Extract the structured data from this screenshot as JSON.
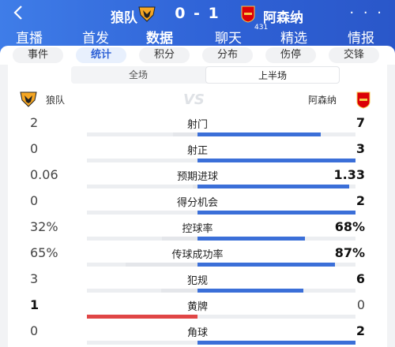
{
  "header": {
    "back_icon": "back-arrow-icon",
    "home_team": "狼队",
    "away_team": "阿森纳",
    "score": "0 - 1",
    "more": "· · ·"
  },
  "tabs": [
    {
      "label": "直播"
    },
    {
      "label": "首发"
    },
    {
      "label": "数据"
    },
    {
      "label": "聊天",
      "badge": "431"
    },
    {
      "label": "精选"
    },
    {
      "label": "情报"
    }
  ],
  "subtabs": [
    {
      "label": "事件"
    },
    {
      "label": "统计"
    },
    {
      "label": "积分"
    },
    {
      "label": "分布"
    },
    {
      "label": "伤停"
    },
    {
      "label": "交锋"
    }
  ],
  "segment": {
    "all": "全场",
    "first_half": "上半场"
  },
  "teams_row": {
    "home": "狼队",
    "vs": "VS",
    "away": "阿森纳"
  },
  "colors": {
    "header": "#2f62d6",
    "home_bar": "#e04646",
    "away_bar": "#3b6fd8"
  },
  "stats": [
    {
      "label": "射门",
      "home": "2",
      "away": "7",
      "home_share": 0.22,
      "away_share": 0.78
    },
    {
      "label": "射正",
      "home": "0",
      "away": "3",
      "home_share": 0.0,
      "away_share": 1.0
    },
    {
      "label": "预期进球",
      "home": "0.06",
      "away": "1.33",
      "home_share": 0.04,
      "away_share": 0.96
    },
    {
      "label": "得分机会",
      "home": "0",
      "away": "2",
      "home_share": 0.0,
      "away_share": 1.0
    },
    {
      "label": "控球率",
      "home": "32%",
      "away": "68%",
      "home_share": 0.32,
      "away_share": 0.68
    },
    {
      "label": "传球成功率",
      "home": "65%",
      "away": "87%",
      "home_share": 0.65,
      "away_share": 0.87
    },
    {
      "label": "犯规",
      "home": "3",
      "away": "6",
      "home_share": 0.33,
      "away_share": 0.67
    },
    {
      "label": "黄牌",
      "home": "1",
      "away": "0",
      "home_share": 1.0,
      "away_share": 0.0
    },
    {
      "label": "角球",
      "home": "0",
      "away": "2",
      "home_share": 0.0,
      "away_share": 1.0
    }
  ]
}
